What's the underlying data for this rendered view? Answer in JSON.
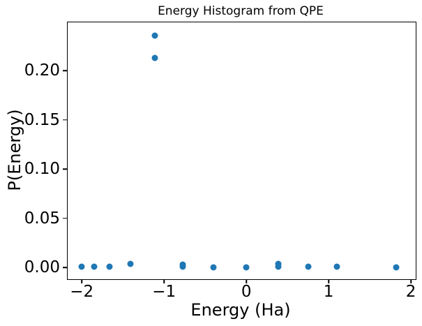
{
  "chart_data": {
    "type": "scatter",
    "title": "Energy Histogram from QPE",
    "xlabel": "Energy (Ha)",
    "ylabel": "P(Energy)",
    "xlim": [
      -2.18,
      2.05
    ],
    "ylim": [
      -0.011,
      0.25
    ],
    "xticks": [
      -2,
      -1,
      0,
      1,
      2
    ],
    "xtick_labels": [
      "−2",
      "−1",
      "0",
      "1",
      "2"
    ],
    "yticks": [
      0.0,
      0.05,
      0.1,
      0.15,
      0.2
    ],
    "ytick_labels": [
      "0.00",
      "0.05",
      "0.10",
      "0.15",
      "0.20"
    ],
    "grid": false,
    "legend": null,
    "marker_color": "#1f77b4",
    "points": [
      {
        "x": -2.0,
        "y": 0.001
      },
      {
        "x": -1.85,
        "y": 0.001
      },
      {
        "x": -1.66,
        "y": 0.001
      },
      {
        "x": -1.41,
        "y": 0.004
      },
      {
        "x": -1.11,
        "y": 0.236
      },
      {
        "x": -1.11,
        "y": 0.213
      },
      {
        "x": -0.77,
        "y": 0.003
      },
      {
        "x": -0.77,
        "y": 0.001
      },
      {
        "x": -0.4,
        "y": 0.0005
      },
      {
        "x": 0.0,
        "y": 0.0005
      },
      {
        "x": 0.39,
        "y": 0.004
      },
      {
        "x": 0.39,
        "y": 0.001
      },
      {
        "x": 0.75,
        "y": 0.001
      },
      {
        "x": 1.1,
        "y": 0.001
      },
      {
        "x": 1.82,
        "y": 0.0005
      }
    ]
  }
}
